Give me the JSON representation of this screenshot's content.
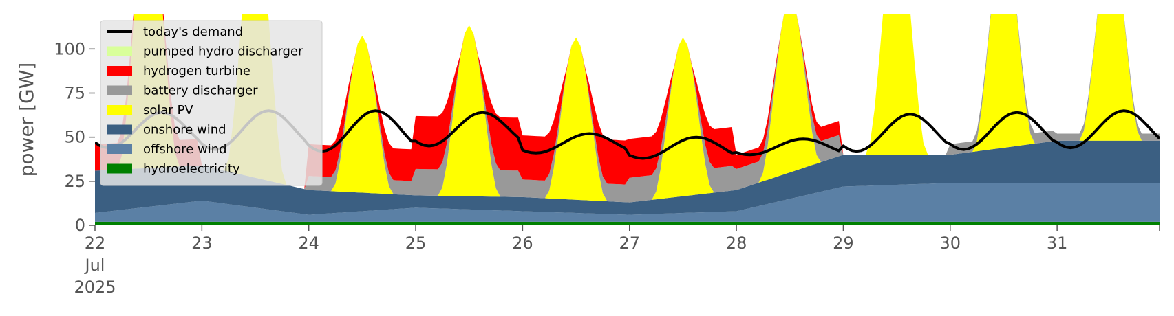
{
  "chart_data": {
    "type": "area",
    "title": "",
    "xlabel": "",
    "ylabel": "power [GW]",
    "ylim": [
      0,
      120
    ],
    "y_ticks": [
      0,
      25,
      50,
      75,
      100
    ],
    "x_range": [
      "2025-07-22",
      "2025-07-31T23:00"
    ],
    "x_tick_labels": [
      {
        "date": "2025-07-22",
        "lines": [
          "22",
          "Jul",
          "2025"
        ]
      },
      {
        "date": "2025-07-23",
        "lines": [
          "23"
        ]
      },
      {
        "date": "2025-07-24",
        "lines": [
          "24"
        ]
      },
      {
        "date": "2025-07-25",
        "lines": [
          "25"
        ]
      },
      {
        "date": "2025-07-26",
        "lines": [
          "26"
        ]
      },
      {
        "date": "2025-07-27",
        "lines": [
          "27"
        ]
      },
      {
        "date": "2025-07-28",
        "lines": [
          "28"
        ]
      },
      {
        "date": "2025-07-29",
        "lines": [
          "29"
        ]
      },
      {
        "date": "2025-07-30",
        "lines": [
          "30"
        ]
      },
      {
        "date": "2025-07-31",
        "lines": [
          "31"
        ]
      }
    ],
    "grid": false,
    "legend_position": "top-left",
    "stack_order": [
      "hydroelectricity",
      "offshore wind",
      "onshore wind",
      "solar PV",
      "battery discharger",
      "hydrogen turbine",
      "pumped hydro discharger"
    ],
    "series": [
      {
        "name": "hydroelectricity",
        "color": "#008000",
        "values": [
          2,
          2,
          2,
          2,
          2,
          2,
          2,
          2,
          2,
          2
        ]
      },
      {
        "name": "offshore wind",
        "color": "#5b80a5",
        "values": [
          5,
          12,
          4,
          8,
          6,
          4,
          6,
          20,
          22,
          22
        ]
      },
      {
        "name": "onshore wind",
        "color": "#3b5f82",
        "values": [
          24,
          20,
          14,
          7,
          8,
          7,
          12,
          18,
          16,
          24
        ]
      },
      {
        "name": "solar PV",
        "color": "#ffff00",
        "peaks": [
          155,
          150,
          89,
          97,
          92,
          90,
          100,
          135,
          120,
          115
        ]
      },
      {
        "name": "battery discharger",
        "color": "#999999",
        "values": [
          0,
          0,
          8,
          15,
          10,
          14,
          12,
          0,
          6,
          4
        ]
      },
      {
        "name": "hydrogen turbine",
        "color": "#ff0000",
        "values": [
          15,
          0,
          18,
          30,
          25,
          22,
          8,
          0,
          0,
          0
        ]
      },
      {
        "name": "pumped hydro discharger",
        "color": "#d9ff9a",
        "values": [
          0,
          0,
          0,
          0,
          0,
          0,
          0,
          0,
          0,
          0
        ]
      }
    ],
    "demand": {
      "name": "today's demand",
      "color": "#000000",
      "daily_min": [
        44,
        43,
        42,
        45,
        41,
        38,
        40,
        42,
        43,
        44
      ],
      "daily_max": [
        64,
        65,
        65,
        64,
        52,
        50,
        49,
        63,
        64,
        65
      ]
    }
  }
}
